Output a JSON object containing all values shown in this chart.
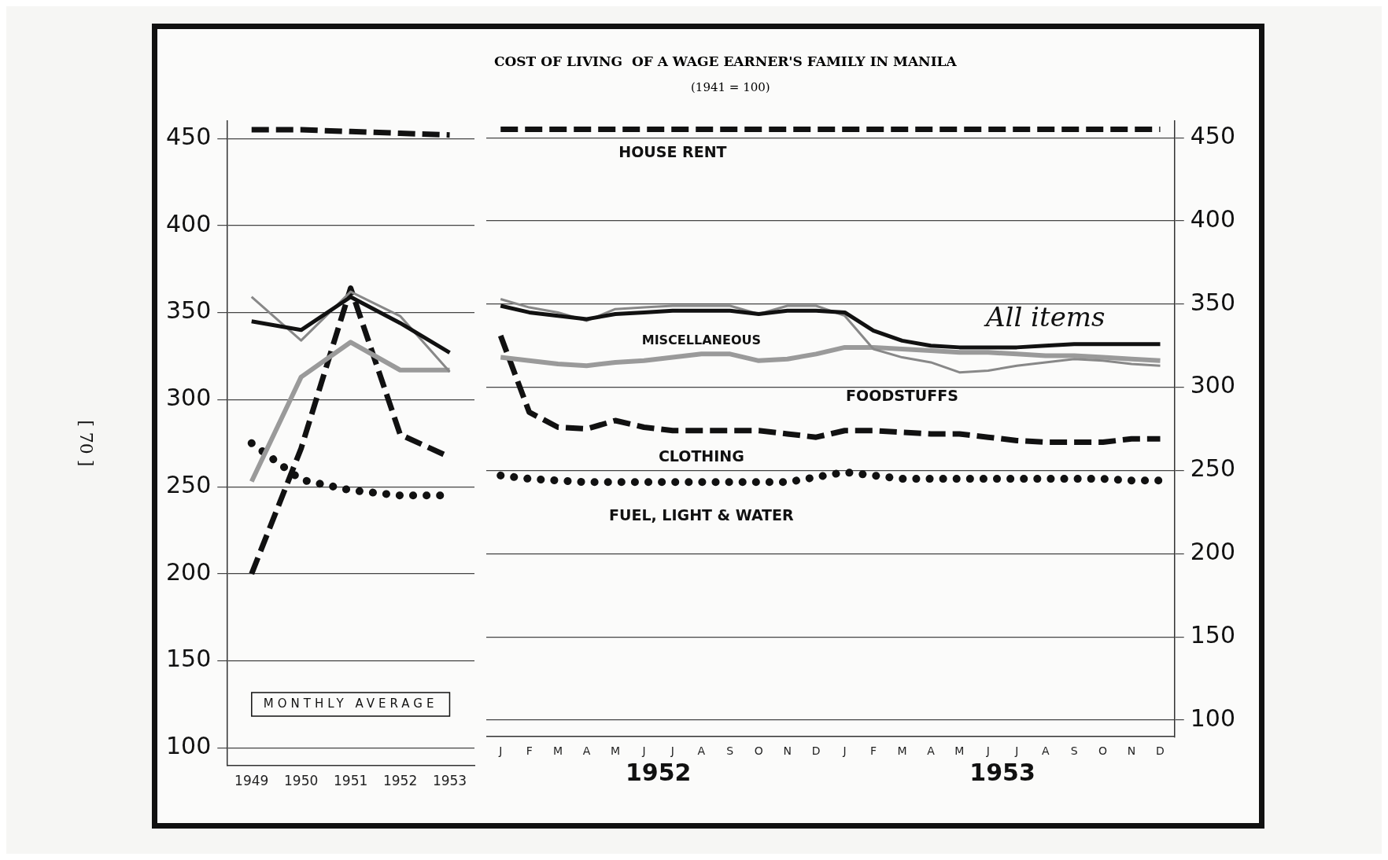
{
  "chart_data": [
    {
      "type": "line",
      "categories": [
        "1949",
        "1950",
        "1951",
        "1952",
        "1953"
      ],
      "series": [
        {
          "color": "#111111",
          "line_style": "dashed",
          "values": [
            455,
            455,
            454,
            453,
            452
          ]
        },
        {
          "color": "#111111",
          "line_style": "solid",
          "values": [
            345,
            340,
            359,
            344,
            327
          ]
        },
        {
          "color": "#888888",
          "line_style": "solid",
          "values": [
            359,
            334,
            362,
            348,
            316
          ]
        },
        {
          "color": "#9a9a9a",
          "line_style": "solid",
          "values": [
            253,
            313,
            333,
            317,
            317
          ]
        },
        {
          "color": "#111111",
          "line_style": "dashed",
          "values": [
            200,
            272,
            364,
            280,
            267
          ]
        },
        {
          "color": "#111111",
          "line_style": "dotted",
          "values": [
            275,
            254,
            248,
            245,
            245
          ]
        }
      ],
      "ylim": [
        90,
        460
      ],
      "yticks": [
        100,
        150,
        200,
        250,
        300,
        350,
        400,
        450
      ],
      "grid": "y",
      "annotations": [
        "MONTHLY AVERAGE",
        "[ 70 ]"
      ]
    },
    {
      "type": "line",
      "title": "COST OF LIVING  OF A WAGE EARNER'S FAMILY IN MANILA",
      "subtitle": "(1941 = 100)",
      "categories": [
        "J",
        "F",
        "M",
        "A",
        "M",
        "J",
        "J",
        "A",
        "S",
        "O",
        "N",
        "D",
        "J",
        "F",
        "M",
        "A",
        "M",
        "J",
        "J",
        "A",
        "S",
        "O",
        "N",
        "D"
      ],
      "series": [
        {
          "name": "HOUSE RENT",
          "color": "#111111",
          "line_style": "dashed",
          "values": [
            455,
            455,
            455,
            455,
            455,
            455,
            455,
            455,
            455,
            455,
            455,
            455,
            455,
            455,
            455,
            455,
            455,
            455,
            455,
            455,
            455,
            455,
            455,
            455
          ]
        },
        {
          "name": "All items",
          "color": "#111111",
          "line_style": "solid",
          "values": [
            349,
            345,
            343,
            341,
            344,
            345,
            346,
            346,
            346,
            344,
            346,
            346,
            345,
            334,
            328,
            325,
            324,
            324,
            324,
            325,
            326,
            326,
            326,
            326
          ]
        },
        {
          "name": "FOODSTUFFS",
          "color": "#888888",
          "line_style": "solid",
          "values": [
            353,
            348,
            345,
            340,
            347,
            348,
            349,
            349,
            349,
            344,
            349,
            349,
            343,
            323,
            318,
            315,
            309,
            310,
            313,
            315,
            317,
            316,
            314,
            313
          ]
        },
        {
          "name": "MISCELLANEOUS",
          "color": "#9a9a9a",
          "line_style": "solid",
          "values": [
            318,
            316,
            314,
            313,
            315,
            316,
            318,
            320,
            320,
            316,
            317,
            320,
            324,
            324,
            323,
            322,
            321,
            321,
            320,
            319,
            319,
            318,
            317,
            316
          ]
        },
        {
          "name": "CLOTHING",
          "color": "#111111",
          "line_style": "dashed",
          "values": [
            331,
            285,
            276,
            275,
            280,
            276,
            274,
            274,
            274,
            274,
            272,
            270,
            274,
            274,
            273,
            272,
            272,
            270,
            268,
            267,
            267,
            267,
            269,
            269
          ]
        },
        {
          "name": "FUEL, LIGHT & WATER",
          "color": "#111111",
          "line_style": "dotted",
          "values": [
            247,
            245,
            244,
            243,
            243,
            243,
            243,
            243,
            243,
            243,
            243,
            246,
            249,
            247,
            245,
            245,
            245,
            245,
            245,
            245,
            245,
            245,
            244,
            244
          ]
        }
      ],
      "ylim": [
        90,
        460
      ],
      "yticks": [
        100,
        150,
        200,
        250,
        300,
        350,
        400,
        450
      ],
      "grid": "y",
      "annotations": [
        "1952",
        "1953"
      ]
    }
  ]
}
